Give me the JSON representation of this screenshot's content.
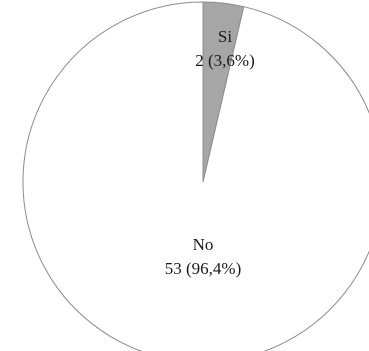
{
  "chart_data": {
    "type": "pie",
    "title": "",
    "legend": "none",
    "start_angle_deg": 0,
    "direction": "clockwise",
    "slices": [
      {
        "name": "Si",
        "value": 2,
        "label_line1": "Si",
        "label_line2": "2 (3,6%)",
        "color": "#a6a6a6"
      },
      {
        "name": "No",
        "value": 53,
        "label_line1": "No",
        "label_line2": "53 (96,4%)",
        "color": "#ffffff"
      }
    ],
    "slice_border_color": "#8c8c8c"
  }
}
